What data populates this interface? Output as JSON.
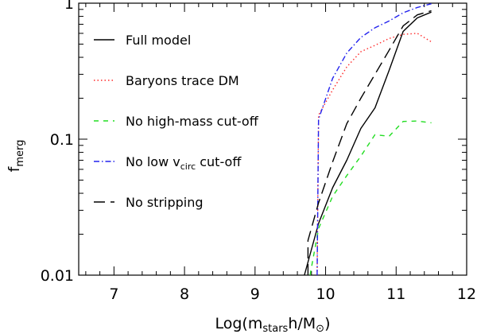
{
  "chart_data": {
    "type": "line",
    "title": "",
    "xlabel": "Log(m_stars h/M_sun)",
    "ylabel": "f_merg",
    "xlim": [
      6.5,
      12
    ],
    "ylim": [
      0.01,
      1
    ],
    "yscale": "log",
    "xticks": [
      7,
      8,
      9,
      10,
      11,
      12
    ],
    "xtick_labels": [
      "7",
      "8",
      "9",
      "10",
      "11",
      "12"
    ],
    "yticks": [
      0.01,
      0.1,
      1
    ],
    "ytick_labels": [
      "0.01",
      "0.1",
      "1"
    ],
    "axis_labels": {
      "x_prefix": "Log(m",
      "x_sub": "stars",
      "x_middle": "h/M",
      "x_sun": "⊙",
      "x_suffix": ")",
      "y_main": "f",
      "y_sub": "merg"
    },
    "legend_position": "left",
    "series": [
      {
        "name": "Full model",
        "label_main": "Full model",
        "label_sub": "",
        "label_suffix": "",
        "color": "#000000",
        "dash": "solid",
        "x": [
          9.7,
          9.9,
          10.1,
          10.3,
          10.5,
          10.7,
          10.9,
          11.1,
          11.3,
          11.5
        ],
        "y": [
          0.01,
          0.024,
          0.044,
          0.07,
          0.12,
          0.17,
          0.32,
          0.62,
          0.78,
          0.86
        ]
      },
      {
        "name": "Baryons trace DM",
        "label_main": "Baryons trace DM",
        "label_sub": "",
        "label_suffix": "",
        "color": "#ff2a2a",
        "dash": "dotted",
        "x": [
          9.88,
          9.9,
          10.1,
          10.3,
          10.5,
          10.7,
          10.9,
          11.1,
          11.3,
          11.5
        ],
        "y": [
          0.01,
          0.15,
          0.23,
          0.34,
          0.44,
          0.49,
          0.55,
          0.59,
          0.6,
          0.52
        ]
      },
      {
        "name": "No high-mass cut-off",
        "label_main": "No high-mass cut-off",
        "label_sub": "",
        "label_suffix": "",
        "color": "#22dd22",
        "dash": "dashed",
        "x": [
          9.78,
          9.9,
          10.1,
          10.3,
          10.5,
          10.7,
          10.9,
          11.1,
          11.3,
          11.5
        ],
        "y": [
          0.01,
          0.022,
          0.038,
          0.054,
          0.075,
          0.108,
          0.105,
          0.135,
          0.136,
          0.132
        ]
      },
      {
        "name": "No low vcirc cut-off",
        "label_main": "No low v",
        "label_sub": "circ",
        "label_suffix": " cut-off",
        "color": "#2222ee",
        "dash": "dashdot",
        "x": [
          9.88,
          9.9,
          10.1,
          10.3,
          10.5,
          10.7,
          10.9,
          11.1,
          11.3,
          11.5
        ],
        "y": [
          0.01,
          0.14,
          0.28,
          0.43,
          0.56,
          0.66,
          0.74,
          0.85,
          0.93,
          0.99
        ]
      },
      {
        "name": "No stripping",
        "label_main": "No stripping",
        "label_sub": "",
        "label_suffix": "",
        "color": "#000000",
        "dash": "longdash",
        "x": [
          9.75,
          9.75,
          9.9,
          10.1,
          10.3,
          10.5,
          10.7,
          10.9,
          11.1,
          11.3,
          11.5
        ],
        "y": [
          0.01,
          0.018,
          0.034,
          0.068,
          0.13,
          0.2,
          0.3,
          0.45,
          0.68,
          0.82,
          0.88
        ]
      }
    ]
  }
}
